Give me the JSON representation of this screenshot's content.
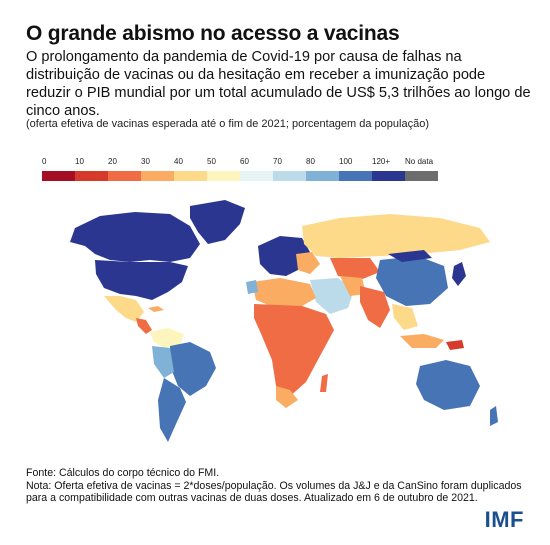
{
  "title": "O grande abismo no acesso a vacinas",
  "subtitle": "O prolongamento da pandemia de Covid-19 por causa de falhas na distribuição de vacinas ou da hesitação em receber a imunização pode reduzir o PIB mundial por um total acumulado de US$ 5,3 trilhões ao longo de cinco anos.",
  "note": "(oferta efetiva de vacinas esperada até o fim de 2021; porcentagem da população)",
  "legend": {
    "labels": [
      "0",
      "10",
      "20",
      "30",
      "40",
      "50",
      "60",
      "70",
      "80",
      "100",
      "120+",
      "No data"
    ],
    "colors": [
      "#a50f26",
      "#d63a2a",
      "#f06c45",
      "#f9ac62",
      "#fdd98a",
      "#fdf5bd",
      "#e6f4f3",
      "#bcdbea",
      "#7fb2d6",
      "#4774b4",
      "#2b3690",
      "#6d6d6d"
    ]
  },
  "footer": {
    "source": "Fonte: Cálculos do corpo técnico do FMI.",
    "note": "Nota: Oferta efetiva de vacinas = 2*doses/população. Os volumes da  J&J e da CanSino foram duplicados para a compatibilidade com outras vacinas de duas doses. Atualizado em 6 de outubro de 2021."
  },
  "logo": "IMF"
}
